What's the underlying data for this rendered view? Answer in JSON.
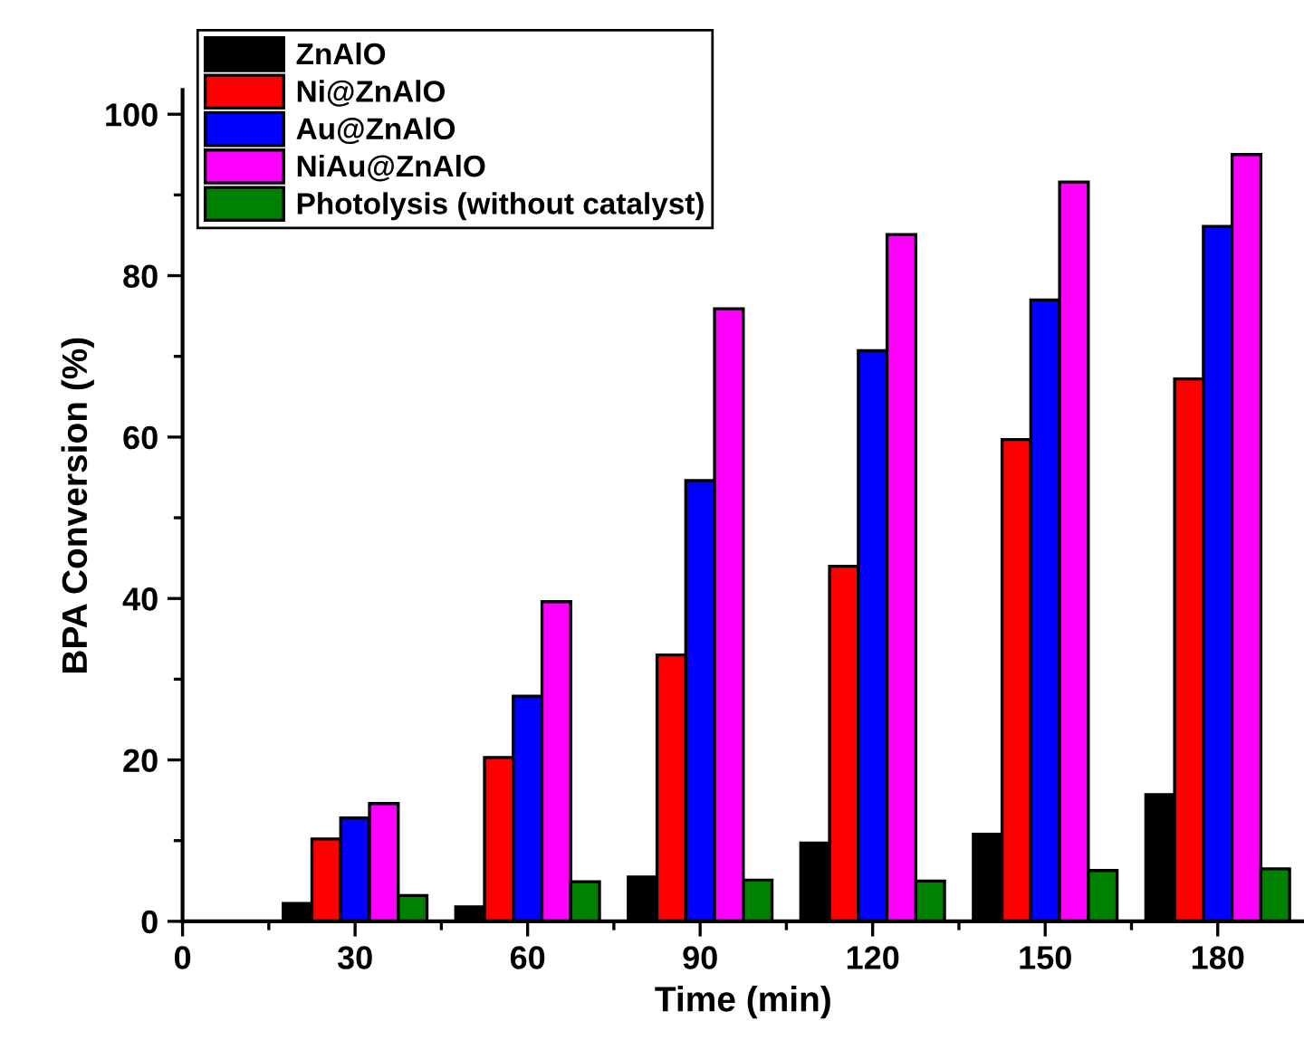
{
  "chart_data": {
    "type": "bar",
    "xlabel": "Time (min)",
    "ylabel": "BPA Conversion (%)",
    "x": [
      30,
      60,
      90,
      120,
      150,
      180
    ],
    "series": [
      {
        "name": "ZnAlO",
        "color": "#000000",
        "values": [
          2.2,
          1.8,
          5.5,
          9.7,
          10.8,
          15.7
        ]
      },
      {
        "name": "Ni@ZnAlO",
        "color": "#ff0000",
        "values": [
          10.2,
          20.3,
          33.0,
          44.0,
          59.7,
          67.2
        ]
      },
      {
        "name": "Au@ZnAlO",
        "color": "#0000ff",
        "values": [
          12.8,
          27.9,
          54.6,
          70.7,
          77.0,
          86.1
        ]
      },
      {
        "name": "NiAu@ZnAlO",
        "color": "#ff00ff",
        "values": [
          14.6,
          39.6,
          75.9,
          85.1,
          91.6,
          95.0
        ]
      },
      {
        "name": "Photolysis (without catalyst)",
        "color": "#008000",
        "values": [
          3.2,
          4.9,
          5.1,
          5.0,
          6.3,
          6.5
        ]
      }
    ],
    "xlim": [
      0,
      195
    ],
    "ylim": [
      0,
      103
    ],
    "xticks": [
      0,
      {
        "value": 15,
        "label": null
      },
      30,
      {
        "value": 45,
        "label": null
      },
      60,
      {
        "value": 75,
        "label": null
      },
      90,
      {
        "value": 105,
        "label": null
      },
      120,
      {
        "value": 135,
        "label": null
      },
      150,
      {
        "value": 165,
        "label": null
      },
      180
    ],
    "yticks": [
      0,
      {
        "value": 10,
        "label": null
      },
      20,
      {
        "value": 30,
        "label": null
      },
      40,
      {
        "value": 50,
        "label": null
      },
      60,
      {
        "value": 70,
        "label": null
      },
      80,
      {
        "value": 90,
        "label": null
      },
      100
    ],
    "grid": false,
    "legend": "top left"
  }
}
